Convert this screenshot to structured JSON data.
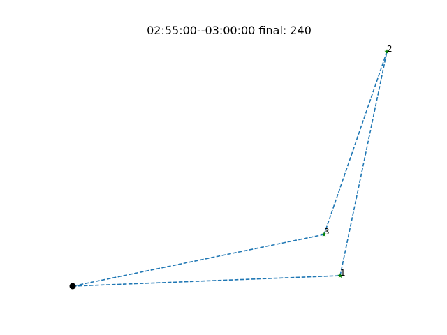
{
  "chart_data": {
    "type": "scatter",
    "title": "02:55:00--03:00:00 final: 240",
    "xlabel": "",
    "ylabel": "",
    "axes_visible": false,
    "grid": false,
    "depot": {
      "x": 0,
      "y": 0,
      "marker": "circle",
      "color": "#000000"
    },
    "stops": [
      {
        "label": "1",
        "x": 383,
        "y": 15,
        "marker": "star",
        "color": "#008000"
      },
      {
        "label": "2",
        "x": 450,
        "y": 336,
        "marker": "star",
        "color": "#008000"
      },
      {
        "label": "3",
        "x": 360,
        "y": 74,
        "marker": "star",
        "color": "#008000"
      }
    ],
    "route": [
      "depot",
      "1",
      "2",
      "3",
      "depot"
    ],
    "route_style": {
      "color": "#1f77b4",
      "dash": "dashed"
    }
  }
}
